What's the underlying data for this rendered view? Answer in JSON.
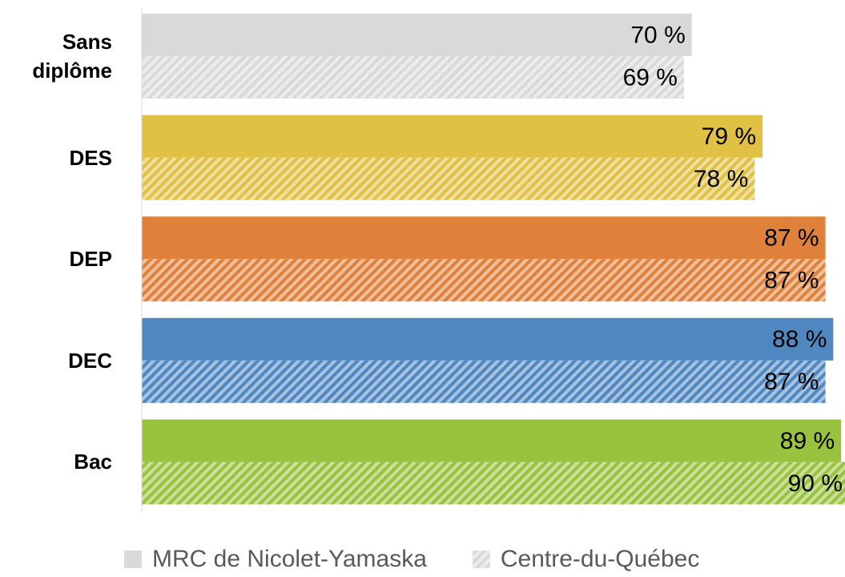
{
  "chart_data": {
    "type": "hbar",
    "categories": [
      "Sans diplôme",
      "DES",
      "DEP",
      "DEC",
      "Bac"
    ],
    "category_colors": [
      "#d9d9d9",
      "#e0c144",
      "#e0813b",
      "#4f88c0",
      "#99c23e"
    ],
    "series": [
      {
        "name": "MRC de Nicolet-Yamaska",
        "color": "#d9d9d9",
        "values": [
          70,
          79,
          87,
          88,
          89
        ],
        "value_labels": [
          "70 %",
          "79 %",
          "87 %",
          "88 %",
          "89 %"
        ]
      },
      {
        "name": "Centre-du-Québec",
        "color": "#d9d9d9",
        "hatched": true,
        "values": [
          69,
          78,
          87,
          87,
          90
        ],
        "value_labels": [
          "69 %",
          "78 %",
          "87 %",
          "87 %",
          "90 %"
        ]
      }
    ],
    "xlim": [
      0,
      90
    ]
  }
}
